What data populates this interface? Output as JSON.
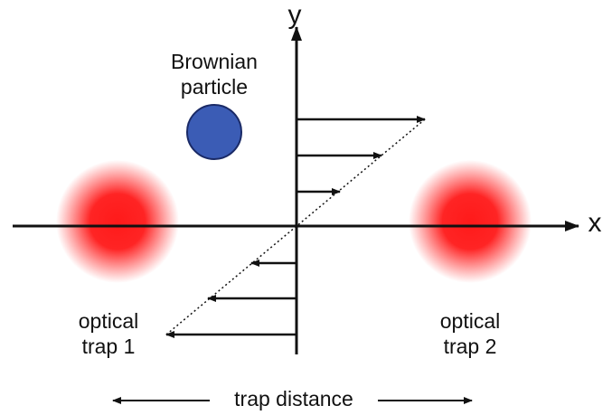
{
  "axes": {
    "y_label": "y",
    "x_label": "x"
  },
  "particle": {
    "label_lines": [
      "Brownian",
      "particle"
    ]
  },
  "traps": [
    {
      "label_lines": [
        "optical",
        "trap 1"
      ]
    },
    {
      "label_lines": [
        "optical",
        "trap 2"
      ]
    }
  ],
  "trap_distance": "trap distance"
}
